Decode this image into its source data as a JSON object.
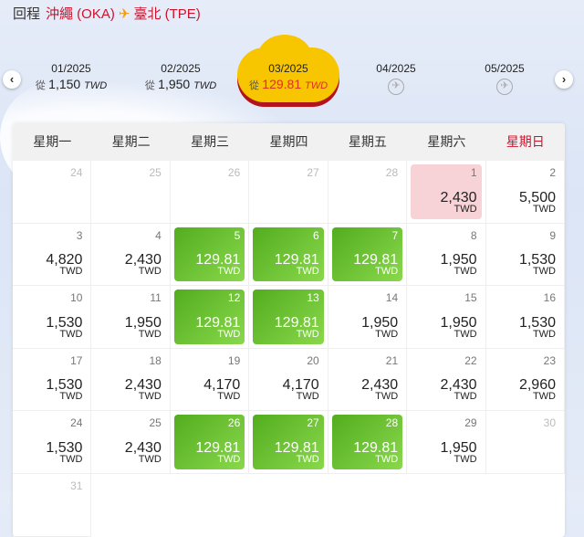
{
  "header": {
    "label": "回程",
    "origin": "沖繩 (OKA)",
    "destination": "臺北 (TPE)",
    "plane_icon": "plane-icon"
  },
  "months": [
    {
      "month": "01/2025",
      "from": "從",
      "price": "1,150",
      "currency": "TWD"
    },
    {
      "month": "02/2025",
      "from": "從",
      "price": "1,950",
      "currency": "TWD"
    },
    {
      "month": "03/2025",
      "from": "從",
      "price": "129.81",
      "currency": "TWD",
      "selected": true
    },
    {
      "month": "04/2025",
      "no_flights": true
    },
    {
      "month": "05/2025",
      "no_flights": true
    }
  ],
  "nav": {
    "prev": "‹",
    "next": "›"
  },
  "weekdays": [
    "星期一",
    "星期二",
    "星期三",
    "星期四",
    "星期五",
    "星期六",
    "星期日"
  ],
  "colors": {
    "brand_red": "#d0112b",
    "cheapest_green": "#6cc434",
    "selected_pink": "#f7d2d6",
    "cloud_yellow": "#f7c600"
  },
  "days": [
    {
      "day": "24",
      "other": true
    },
    {
      "day": "25",
      "other": true
    },
    {
      "day": "26",
      "other": true
    },
    {
      "day": "27",
      "other": true
    },
    {
      "day": "28",
      "other": true
    },
    {
      "day": "1",
      "price": "2,430",
      "currency": "TWD",
      "state": "selected"
    },
    {
      "day": "2",
      "price": "5,500",
      "currency": "TWD"
    },
    {
      "day": "3",
      "price": "4,820",
      "currency": "TWD"
    },
    {
      "day": "4",
      "price": "2,430",
      "currency": "TWD"
    },
    {
      "day": "5",
      "price": "129.81",
      "currency": "TWD",
      "state": "cheapest"
    },
    {
      "day": "6",
      "price": "129.81",
      "currency": "TWD",
      "state": "cheapest"
    },
    {
      "day": "7",
      "price": "129.81",
      "currency": "TWD",
      "state": "cheapest"
    },
    {
      "day": "8",
      "price": "1,950",
      "currency": "TWD"
    },
    {
      "day": "9",
      "price": "1,530",
      "currency": "TWD"
    },
    {
      "day": "10",
      "price": "1,530",
      "currency": "TWD"
    },
    {
      "day": "11",
      "price": "1,950",
      "currency": "TWD"
    },
    {
      "day": "12",
      "price": "129.81",
      "currency": "TWD",
      "state": "cheapest"
    },
    {
      "day": "13",
      "price": "129.81",
      "currency": "TWD",
      "state": "cheapest"
    },
    {
      "day": "14",
      "price": "1,950",
      "currency": "TWD"
    },
    {
      "day": "15",
      "price": "1,950",
      "currency": "TWD"
    },
    {
      "day": "16",
      "price": "1,530",
      "currency": "TWD"
    },
    {
      "day": "17",
      "price": "1,530",
      "currency": "TWD"
    },
    {
      "day": "18",
      "price": "2,430",
      "currency": "TWD"
    },
    {
      "day": "19",
      "price": "4,170",
      "currency": "TWD"
    },
    {
      "day": "20",
      "price": "4,170",
      "currency": "TWD"
    },
    {
      "day": "21",
      "price": "2,430",
      "currency": "TWD"
    },
    {
      "day": "22",
      "price": "2,430",
      "currency": "TWD"
    },
    {
      "day": "23",
      "price": "2,960",
      "currency": "TWD"
    },
    {
      "day": "24",
      "price": "1,530",
      "currency": "TWD"
    },
    {
      "day": "25",
      "price": "2,430",
      "currency": "TWD"
    },
    {
      "day": "26",
      "price": "129.81",
      "currency": "TWD",
      "state": "cheapest"
    },
    {
      "day": "27",
      "price": "129.81",
      "currency": "TWD",
      "state": "cheapest"
    },
    {
      "day": "28",
      "price": "129.81",
      "currency": "TWD",
      "state": "cheapest"
    },
    {
      "day": "29",
      "price": "1,950",
      "currency": "TWD"
    },
    {
      "day": "30",
      "other": true
    },
    {
      "day": "31",
      "other": true
    }
  ]
}
